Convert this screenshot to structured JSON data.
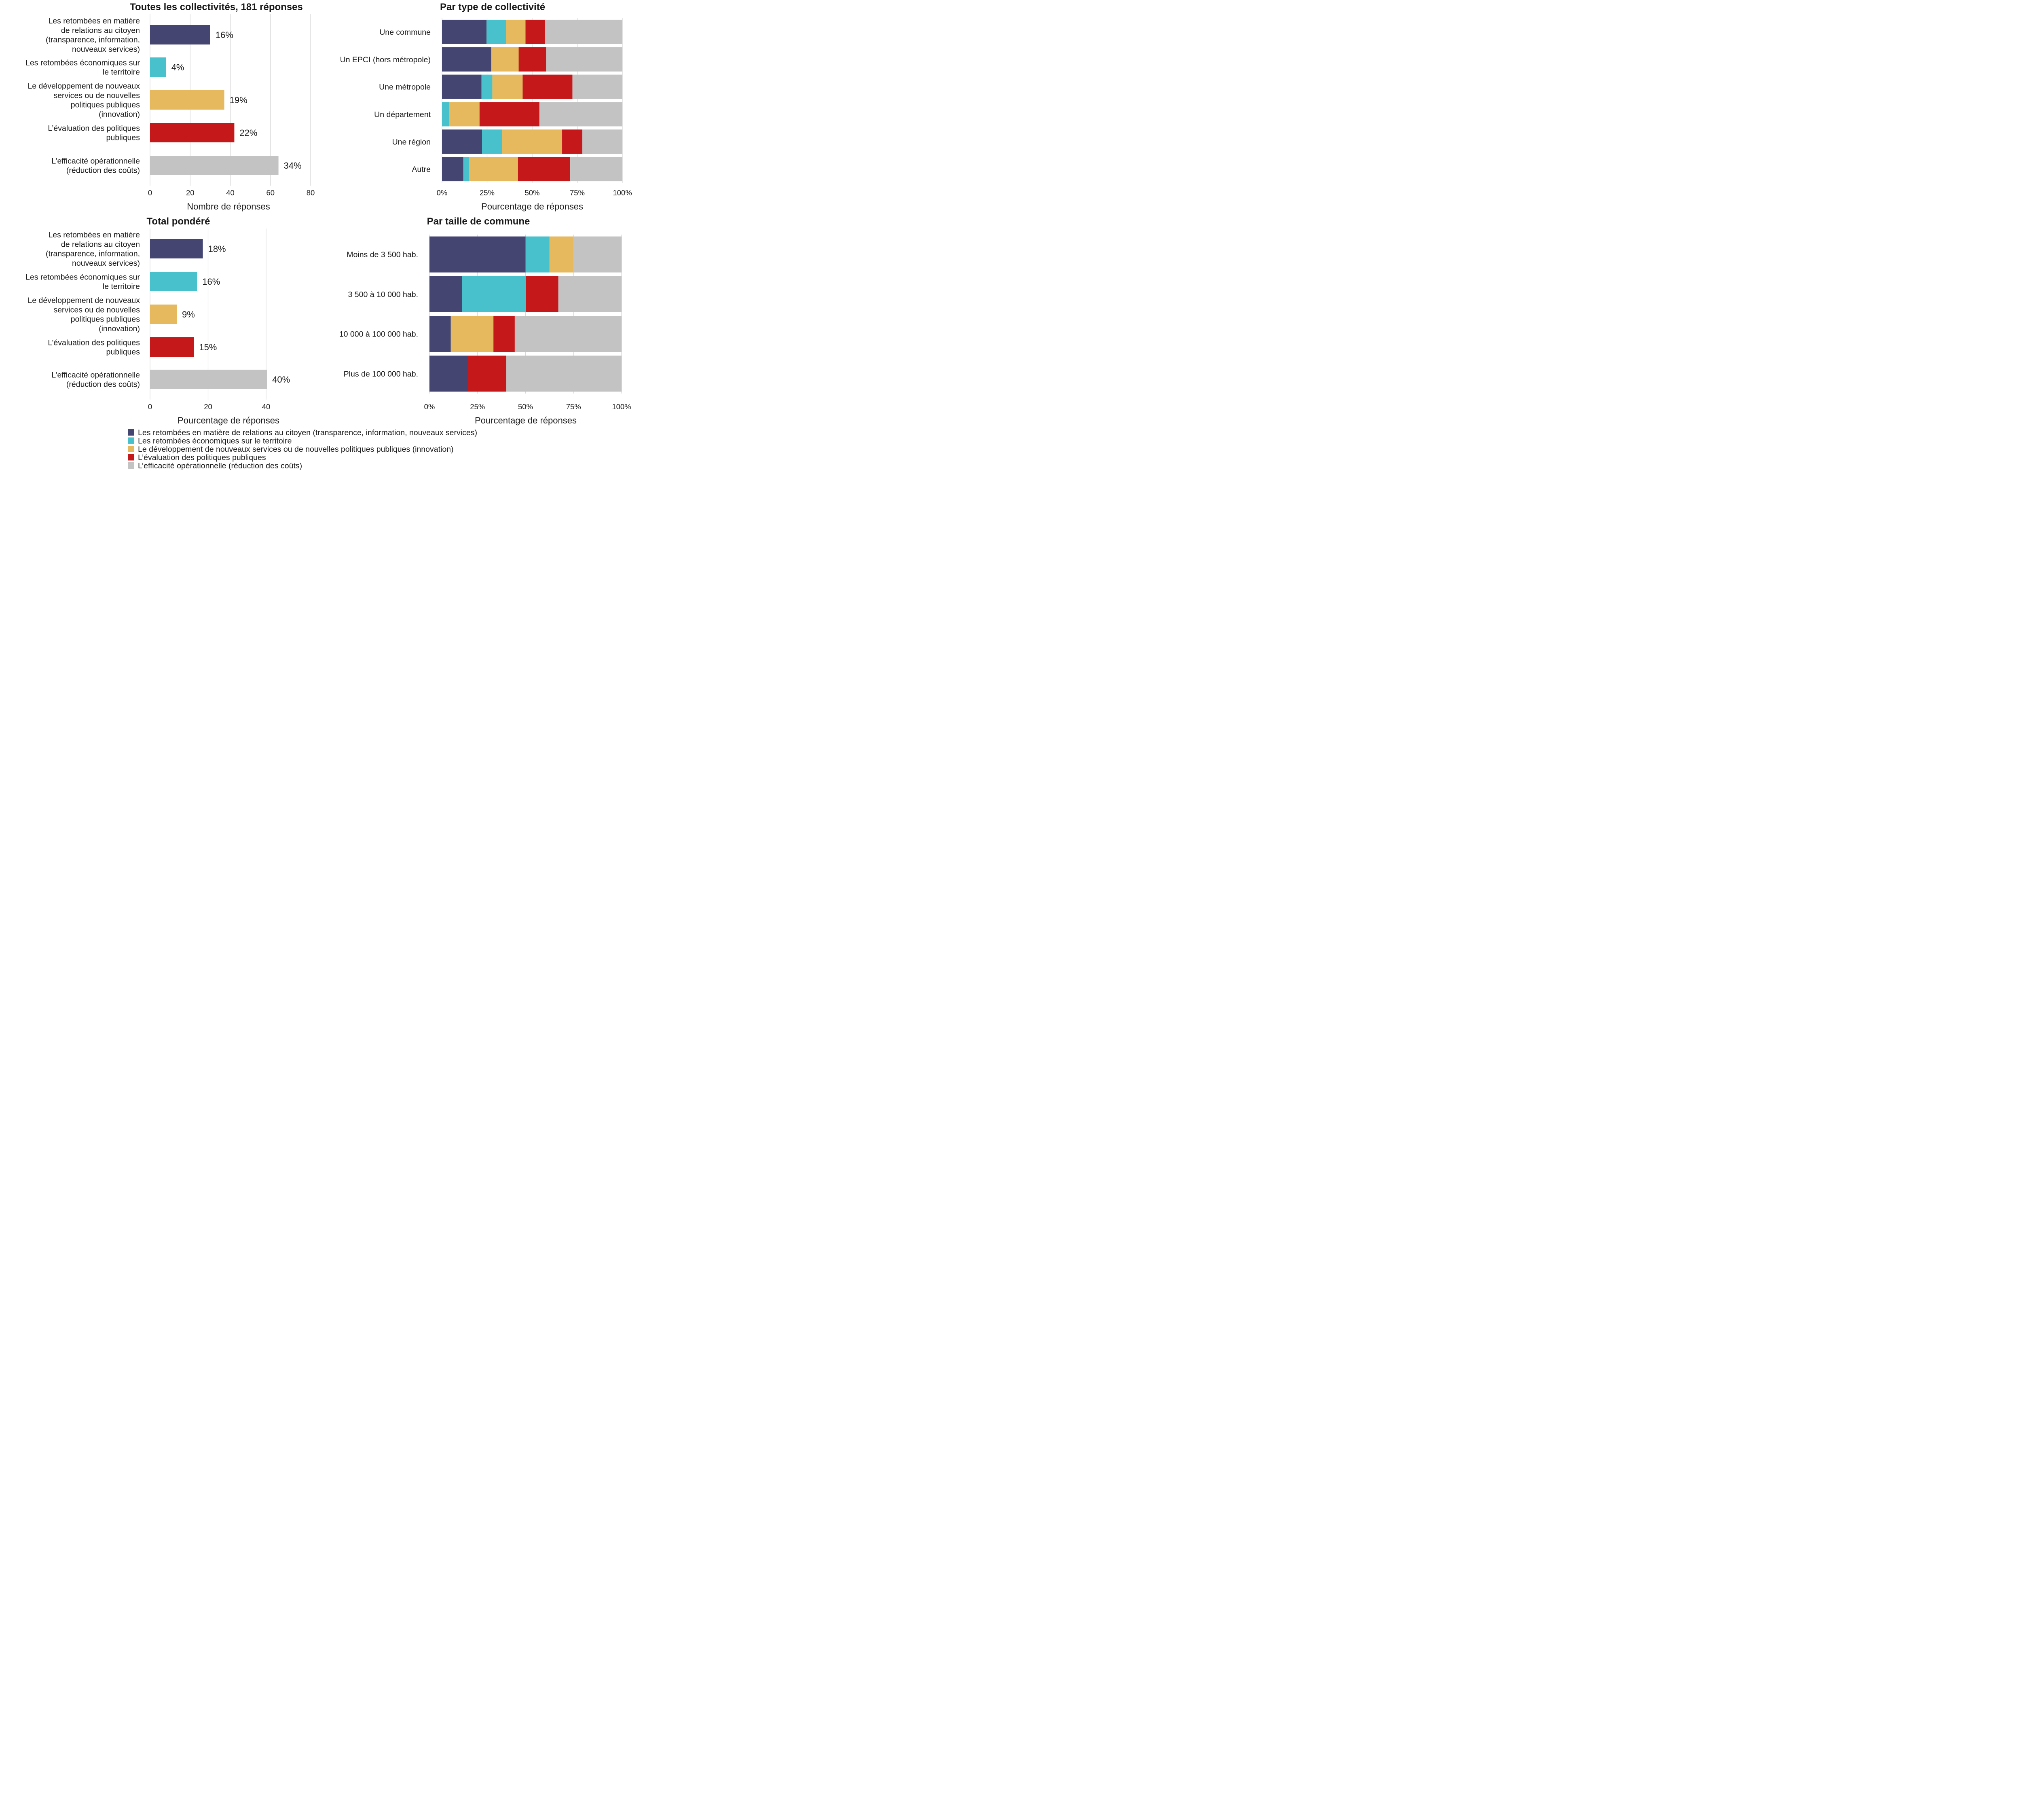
{
  "colors": {
    "citoyen": "#444571",
    "economique": "#48C1CC",
    "innovation": "#E6B95E",
    "evaluation": "#C4181B",
    "efficacite": "#C3C3C3"
  },
  "legend": [
    {
      "key": "citoyen",
      "label": "Les retombées en matière de relations au citoyen (transparence, information, nouveaux services)"
    },
    {
      "key": "economique",
      "label": "Les retombées économiques sur le territoire"
    },
    {
      "key": "innovation",
      "label": "Le développement de nouveaux services ou de nouvelles politiques publiques (innovation)"
    },
    {
      "key": "evaluation",
      "label": "L’évaluation des politiques publiques"
    },
    {
      "key": "efficacite",
      "label": "L’efficacité opérationnelle (réduction des coûts)"
    }
  ],
  "chart_data": [
    {
      "id": "all",
      "type": "bar",
      "orientation": "horizontal",
      "title": "Toutes les collectivités, 181 réponses",
      "xlabel": "Nombre de réponses",
      "xlim": [
        0,
        80
      ],
      "xticks": [
        "0",
        "20",
        "40",
        "60",
        "80"
      ],
      "grid": true,
      "categories": [
        [
          "Les retombées en matière",
          "de relations au citoyen",
          "(transparence, information,",
          "nouveaux services)"
        ],
        [
          "Les retombées économiques sur",
          "le territoire"
        ],
        [
          "Le développement de nouveaux",
          "services ou de nouvelles",
          "politiques publiques",
          "(innovation)"
        ],
        [
          "L’évaluation des politiques",
          "publiques"
        ],
        [
          "L’efficacité opérationnelle",
          "(réduction des coûts)"
        ]
      ],
      "keys": [
        "citoyen",
        "economique",
        "innovation",
        "evaluation",
        "efficacite"
      ],
      "values": [
        30,
        8,
        37,
        42,
        64
      ],
      "labels": [
        "16%",
        "4%",
        "19%",
        "22%",
        "34%"
      ]
    },
    {
      "id": "type",
      "type": "bar",
      "stacked": true,
      "orientation": "horizontal",
      "title": "Par type de collectivité",
      "xlabel": "Pourcentage de réponses",
      "xlim": [
        0,
        100
      ],
      "xticks": [
        "0%",
        "25%",
        "50%",
        "75%",
        "100%"
      ],
      "grid": true,
      "categories": [
        "Une commune",
        "Un EPCI (hors métropole)",
        "Une métropole",
        "Un département",
        "Une région",
        "Autre"
      ],
      "series": [
        {
          "key": "citoyen",
          "values": [
            24.7,
            27.3,
            21.9,
            0,
            22.2,
            11.8
          ]
        },
        {
          "key": "economique",
          "values": [
            10.8,
            0,
            6.0,
            4.0,
            11.1,
            3.3
          ]
        },
        {
          "key": "innovation",
          "values": [
            10.8,
            15.2,
            16.8,
            16.8,
            33.3,
            27.0
          ]
        },
        {
          "key": "evaluation",
          "values": [
            10.8,
            15.2,
            27.6,
            33.2,
            11.2,
            29.0
          ]
        },
        {
          "key": "efficacite",
          "values": [
            42.9,
            42.3,
            27.7,
            46.0,
            22.2,
            28.9
          ]
        }
      ]
    },
    {
      "id": "pondere",
      "type": "bar",
      "orientation": "horizontal",
      "title": "Total pondéré",
      "xlabel": "Pourcentage de réponses",
      "xlim": [
        0,
        40
      ],
      "xticks": [
        "0",
        "20",
        "40"
      ],
      "grid": true,
      "categories": [
        [
          "Les retombées en matière",
          "de relations au citoyen",
          "(transparence, information,",
          "nouveaux services)"
        ],
        [
          "Les retombées économiques sur",
          "le territoire"
        ],
        [
          "Le développement de nouveaux",
          "services ou de nouvelles",
          "politiques publiques",
          "(innovation)"
        ],
        [
          "L’évaluation des politiques",
          "publiques"
        ],
        [
          "L’efficacité opérationnelle",
          "(réduction des coûts)"
        ]
      ],
      "keys": [
        "citoyen",
        "economique",
        "innovation",
        "evaluation",
        "efficacite"
      ],
      "values": [
        18.2,
        16.2,
        9.2,
        15.1,
        40.3
      ],
      "labels": [
        "18%",
        "16%",
        "9%",
        "15%",
        "40%"
      ]
    },
    {
      "id": "taille",
      "type": "bar",
      "stacked": true,
      "orientation": "horizontal",
      "title": "Par taille de commune",
      "xlabel": "Pourcentage de réponses",
      "xlim": [
        0,
        100
      ],
      "xticks": [
        "0%",
        "25%",
        "50%",
        "75%",
        "100%"
      ],
      "grid": true,
      "categories": [
        "Moins de 3 500 hab.",
        "3 500 à 10 000 hab.",
        "10 000 à 100 000 hab.",
        "Plus de 100 000 hab."
      ],
      "series": [
        {
          "key": "citoyen",
          "values": [
            50,
            16.9,
            11.1,
            20
          ]
        },
        {
          "key": "economique",
          "values": [
            12.5,
            33.3,
            0,
            0
          ]
        },
        {
          "key": "innovation",
          "values": [
            12.5,
            0,
            22.2,
            0
          ]
        },
        {
          "key": "evaluation",
          "values": [
            0,
            16.9,
            11.1,
            20
          ]
        },
        {
          "key": "efficacite",
          "values": [
            25,
            32.9,
            55.6,
            60
          ]
        }
      ]
    }
  ]
}
